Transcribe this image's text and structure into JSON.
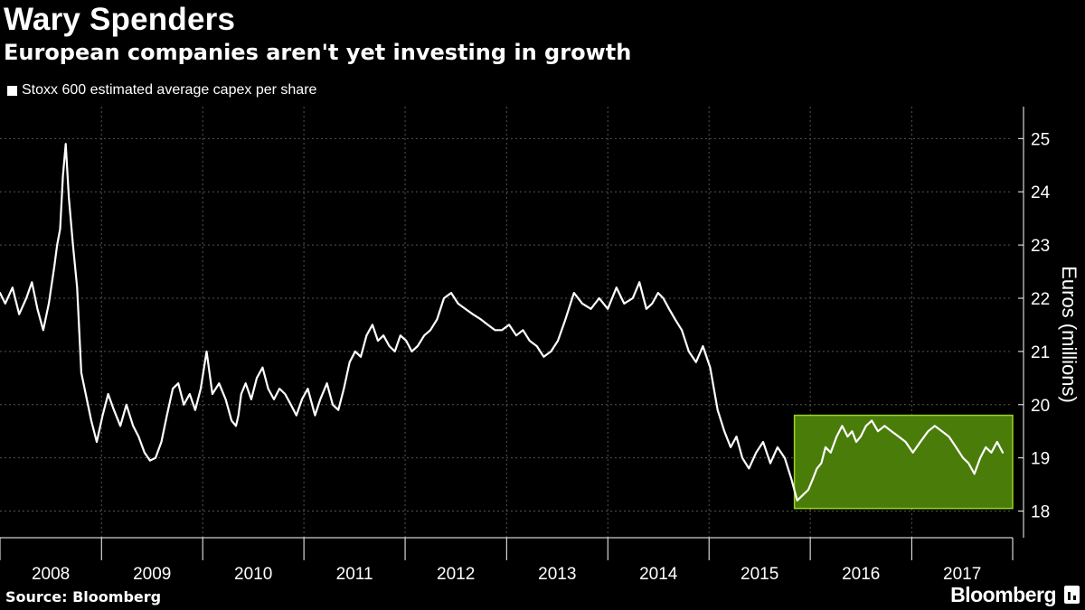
{
  "header": {
    "title": "Wary Spenders",
    "subtitle": "European companies aren't yet investing in growth"
  },
  "footer": {
    "source": "Source: Bloomberg",
    "brand": "Bloomberg"
  },
  "colors": {
    "background": "#000000",
    "line": "#ffffff",
    "highlight_fill": "#4a7c0a",
    "highlight_stroke": "#9bd31f",
    "grid": "#555555"
  },
  "chart_data": {
    "type": "line",
    "title": "Wary Spenders",
    "subtitle": "European companies aren't yet investing in growth",
    "xlabel": "",
    "ylabel": "Euros (millions)",
    "y_axis_position": "right",
    "ylim": [
      17.5,
      25.6
    ],
    "xlim": [
      "2008-01-01",
      "2017-12-31"
    ],
    "y_ticks": [
      18,
      19,
      20,
      21,
      22,
      23,
      24,
      25
    ],
    "x_tick_labels": [
      "2008",
      "2009",
      "2010",
      "2011",
      "2012",
      "2013",
      "2014",
      "2015",
      "2016",
      "2017"
    ],
    "grid": "dashed horizontal and vertical",
    "legend_position": "top-left",
    "series": [
      {
        "name": "Stoxx 600 estimated average capex per share",
        "x": [
          "2008-01-01",
          "2008-01-20",
          "2008-02-15",
          "2008-03-10",
          "2008-04-05",
          "2008-04-25",
          "2008-05-15",
          "2008-06-05",
          "2008-06-25",
          "2008-07-15",
          "2008-07-25",
          "2008-08-05",
          "2008-08-15",
          "2008-08-25",
          "2008-09-05",
          "2008-09-20",
          "2008-10-05",
          "2008-10-20",
          "2008-11-05",
          "2008-11-25",
          "2008-12-15",
          "2009-01-05",
          "2009-01-25",
          "2009-02-15",
          "2009-03-10",
          "2009-04-01",
          "2009-04-25",
          "2009-05-15",
          "2009-06-05",
          "2009-06-25",
          "2009-07-15",
          "2009-08-05",
          "2009-08-25",
          "2009-09-15",
          "2009-10-05",
          "2009-10-25",
          "2009-11-15",
          "2009-12-05",
          "2009-12-25",
          "2010-01-15",
          "2010-02-05",
          "2010-03-01",
          "2010-03-25",
          "2010-04-15",
          "2010-05-01",
          "2010-05-10",
          "2010-05-20",
          "2010-06-05",
          "2010-06-25",
          "2010-07-15",
          "2010-08-05",
          "2010-08-25",
          "2010-09-15",
          "2010-10-05",
          "2010-10-25",
          "2010-11-15",
          "2010-12-05",
          "2010-12-25",
          "2011-01-15",
          "2011-02-10",
          "2011-03-01",
          "2011-03-25",
          "2011-04-15",
          "2011-05-05",
          "2011-05-25",
          "2011-06-15",
          "2011-07-05",
          "2011-07-25",
          "2011-08-15",
          "2011-09-05",
          "2011-09-25",
          "2011-10-15",
          "2011-11-05",
          "2011-11-25",
          "2011-12-15",
          "2012-01-05",
          "2012-01-25",
          "2012-02-15",
          "2012-03-10",
          "2012-04-01",
          "2012-04-25",
          "2012-05-20",
          "2012-06-15",
          "2012-07-10",
          "2012-08-05",
          "2012-09-01",
          "2012-10-01",
          "2012-10-25",
          "2012-11-20",
          "2012-12-15",
          "2013-01-10",
          "2013-02-05",
          "2013-03-01",
          "2013-03-25",
          "2013-04-20",
          "2013-05-15",
          "2013-06-10",
          "2013-07-05",
          "2013-08-01",
          "2013-09-01",
          "2013-10-01",
          "2013-11-01",
          "2013-12-01",
          "2014-01-01",
          "2014-02-01",
          "2014-03-01",
          "2014-04-01",
          "2014-04-25",
          "2014-05-20",
          "2014-06-10",
          "2014-07-01",
          "2014-07-20",
          "2014-08-10",
          "2014-09-01",
          "2014-09-25",
          "2014-10-20",
          "2014-11-15",
          "2014-12-10",
          "2015-01-05",
          "2015-02-01",
          "2015-02-25",
          "2015-03-20",
          "2015-04-10",
          "2015-05-01",
          "2015-05-25",
          "2015-06-20",
          "2015-07-15",
          "2015-08-10",
          "2015-09-05",
          "2015-10-01",
          "2015-10-25",
          "2015-11-15",
          "2015-12-05",
          "2015-12-25",
          "2016-01-10",
          "2016-01-25",
          "2016-02-10",
          "2016-02-25",
          "2016-03-15",
          "2016-04-05",
          "2016-04-25",
          "2016-05-15",
          "2016-05-31",
          "2016-06-15",
          "2016-07-01",
          "2016-07-20",
          "2016-08-10",
          "2016-09-01",
          "2016-09-25",
          "2016-10-20",
          "2016-11-15",
          "2016-12-10",
          "2017-01-05",
          "2017-02-01",
          "2017-03-01",
          "2017-03-25",
          "2017-04-20",
          "2017-05-15",
          "2017-06-10",
          "2017-07-05",
          "2017-07-25",
          "2017-08-15",
          "2017-09-05",
          "2017-09-25",
          "2017-10-15",
          "2017-11-05",
          "2017-11-25"
        ],
        "values": [
          22.1,
          21.9,
          22.2,
          21.7,
          22.0,
          22.3,
          21.8,
          21.4,
          21.9,
          22.6,
          23.0,
          23.3,
          24.3,
          24.9,
          23.9,
          23.0,
          22.2,
          20.6,
          20.2,
          19.7,
          19.3,
          19.8,
          20.2,
          19.9,
          19.6,
          20.0,
          19.6,
          19.4,
          19.1,
          18.95,
          19.0,
          19.3,
          19.8,
          20.3,
          20.4,
          20.0,
          20.2,
          19.9,
          20.3,
          21.0,
          20.2,
          20.4,
          20.1,
          19.7,
          19.6,
          19.8,
          20.2,
          20.4,
          20.1,
          20.5,
          20.7,
          20.3,
          20.1,
          20.3,
          20.2,
          20.0,
          19.8,
          20.1,
          20.3,
          19.8,
          20.1,
          20.4,
          20.0,
          19.9,
          20.3,
          20.8,
          21.0,
          20.9,
          21.3,
          21.5,
          21.2,
          21.3,
          21.1,
          21.0,
          21.3,
          21.2,
          21.0,
          21.1,
          21.3,
          21.4,
          21.6,
          22.0,
          22.1,
          21.9,
          21.8,
          21.7,
          21.6,
          21.5,
          21.4,
          21.4,
          21.5,
          21.3,
          21.4,
          21.2,
          21.1,
          20.9,
          21.0,
          21.2,
          21.6,
          22.1,
          21.9,
          21.8,
          22.0,
          21.8,
          22.2,
          21.9,
          22.0,
          22.3,
          21.8,
          21.9,
          22.1,
          22.0,
          21.8,
          21.6,
          21.4,
          21.0,
          20.8,
          21.1,
          20.7,
          19.9,
          19.5,
          19.2,
          19.4,
          19.0,
          18.8,
          19.1,
          19.3,
          18.9,
          19.2,
          19.0,
          18.6,
          18.2,
          18.3,
          18.4,
          18.6,
          18.8,
          18.9,
          19.2,
          19.1,
          19.4,
          19.6,
          19.4,
          19.5,
          19.3,
          19.4,
          19.6,
          19.7,
          19.5,
          19.6,
          19.5,
          19.4,
          19.3,
          19.1,
          19.3,
          19.5,
          19.6,
          19.5,
          19.4,
          19.2,
          19.0,
          18.9,
          18.7,
          19.0,
          19.2,
          19.1,
          19.3,
          19.1
        ],
        "note_highlight_region": {
          "x_start": "2015-12-01",
          "x_end": "2017-12-31",
          "y_start": 18.05,
          "y_end": 19.8
        }
      }
    ]
  }
}
